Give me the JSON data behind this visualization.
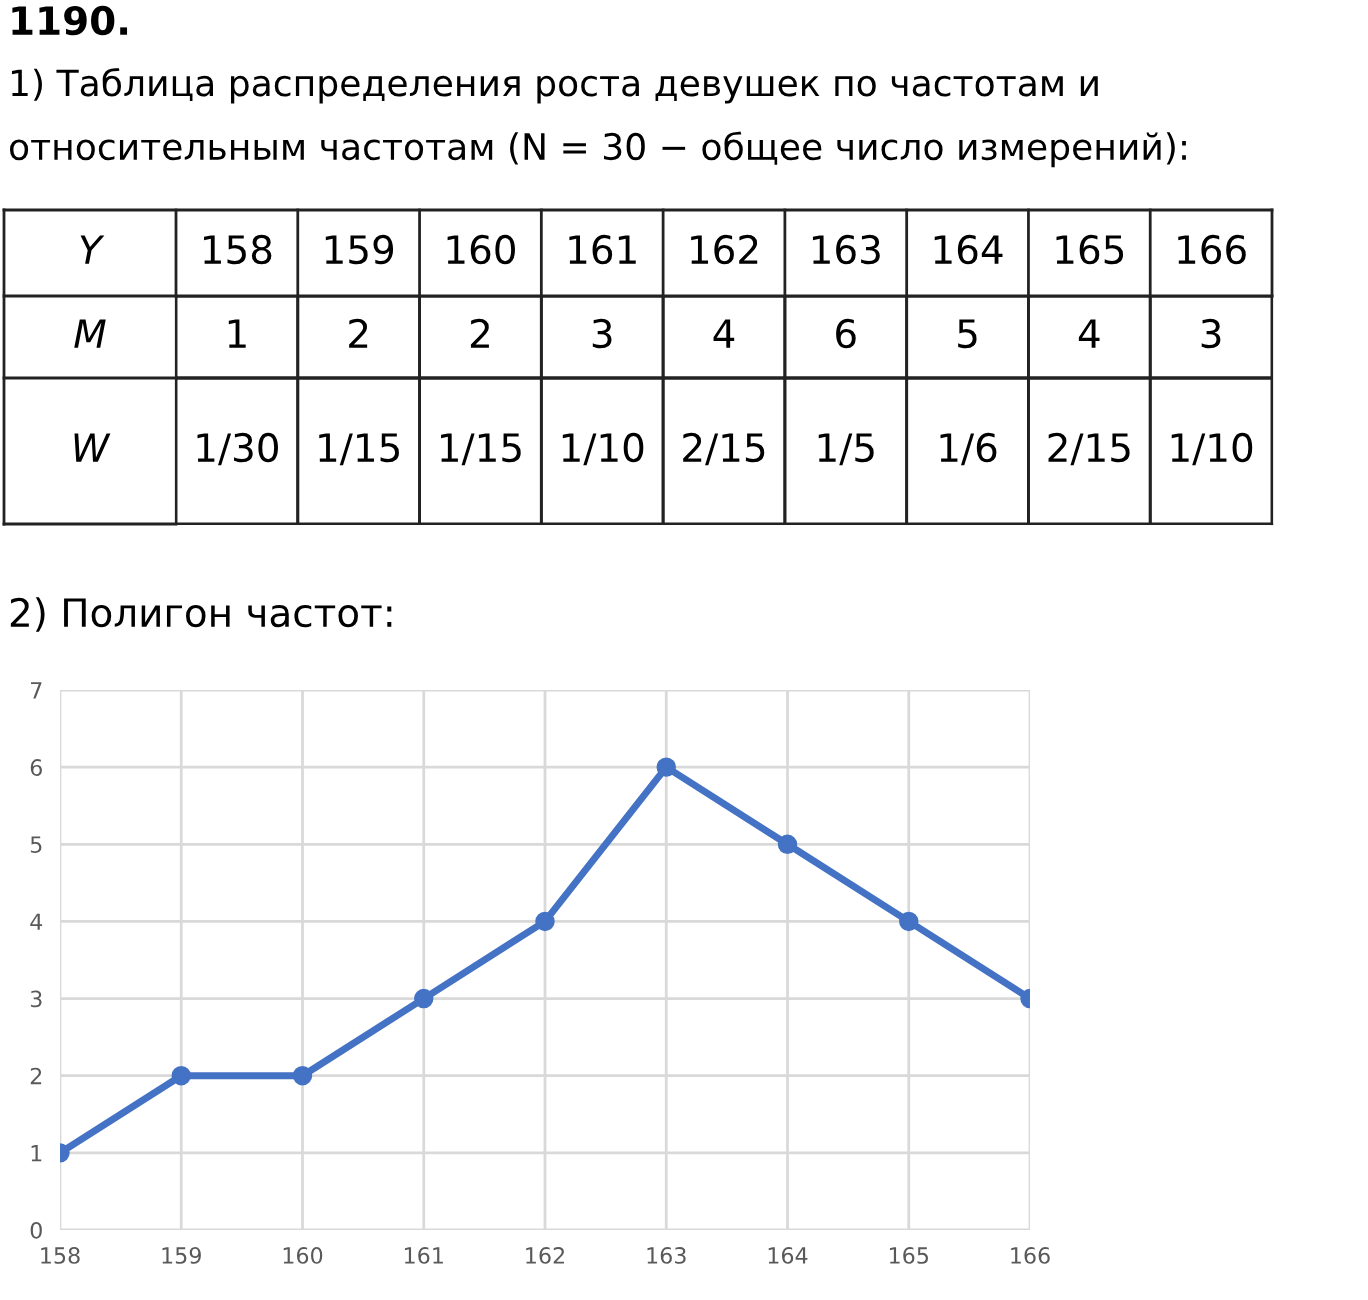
{
  "chart_data": [
    {
      "type": "heatmap",
      "title": "1190.",
      "subtitle": "1) Таблица распределения роста девушек по частотам и относительным частотам (N = 30 − общее число измерений):",
      "xlabel": "Y",
      "categories": [
        "158",
        "159",
        "160",
        "161",
        "162",
        "163",
        "164",
        "165",
        "166"
      ],
      "y_categories": [
        "M",
        "W"
      ],
      "cells": [
        [
          null,
          null,
          null,
          null,
          null,
          null,
          null,
          null,
          null
        ],
        [
          null,
          null,
          null,
          null,
          null,
          null,
          null,
          null,
          null
        ]
      ],
      "cell_labels": [
        [
          "1",
          "2",
          "2",
          "3",
          "4",
          "6",
          "5",
          "4",
          "3"
        ],
        [
          "1/30",
          "1/15",
          "1/15",
          "1/10",
          "2/15",
          "1/5",
          "1/6",
          "2/15",
          "1/10"
        ]
      ]
    },
    {
      "type": "line",
      "title": "2) Полигон частот:",
      "x": [
        158,
        159,
        160,
        161,
        162,
        163,
        164,
        165,
        166
      ],
      "series": [
        {
          "color": "#4472c4",
          "values": [
            1,
            2,
            2,
            3,
            4,
            6,
            5,
            4,
            3
          ]
        }
      ],
      "xlim": [
        158,
        166
      ],
      "xticks": [
        158,
        159,
        160,
        161,
        162,
        163,
        164,
        165,
        166
      ],
      "ylim": [
        0,
        7
      ],
      "yticks": [
        0,
        1,
        2,
        3,
        4,
        5,
        6,
        7
      ],
      "grid": true,
      "marker": "circle",
      "line_style": "solid",
      "legend": false
    }
  ]
}
